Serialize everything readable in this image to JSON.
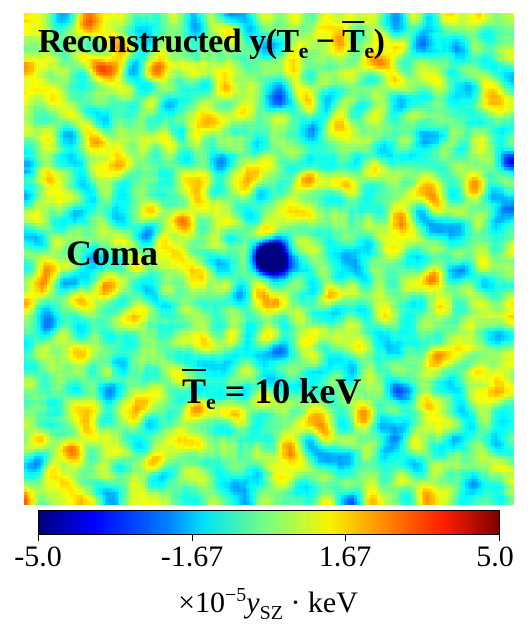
{
  "map": {
    "title_prefix": "Reconstructed y(T",
    "title_sub1": "e",
    "title_minus": " − ",
    "title_bar_t": "T",
    "title_sub2": "e",
    "title_suffix": ")",
    "region_label": "Coma",
    "temp_bar_t": "T",
    "temp_sub": "e",
    "temp_value": " = 10 keV",
    "colormap": "jet"
  },
  "colorbar": {
    "ticks": [
      "-5.0",
      "-1.67",
      "1.67",
      "5.0"
    ],
    "tick_values": [
      -5.0,
      -1.67,
      1.67,
      5.0
    ],
    "range": [
      -5.0,
      5.0
    ],
    "unit_prefix": "×10",
    "unit_exp": "−5",
    "unit_y": "y",
    "unit_sub": "SZ",
    "unit_suffix": " · keV"
  }
}
